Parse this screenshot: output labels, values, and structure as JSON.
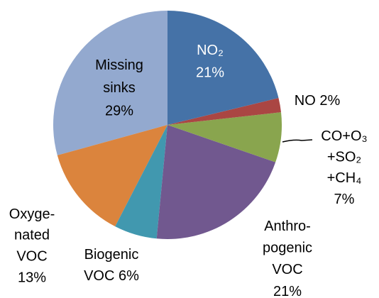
{
  "chart_data": {
    "type": "pie",
    "categories": [
      [
        "NO₂"
      ],
      [
        "NO"
      ],
      [
        "CO+O₃",
        "+SO₂",
        "+CH₄"
      ],
      [
        "Anthro-",
        "pogenic",
        "VOC"
      ],
      [
        "Biogenic",
        "VOC"
      ],
      [
        "Oxyge-",
        "nated",
        "VOC"
      ],
      [
        "Missing",
        "sinks"
      ]
    ],
    "values": [
      21,
      2,
      7,
      21,
      6,
      13,
      29
    ],
    "value_labels": [
      "21%",
      "2%",
      "7%",
      "21%",
      "6%",
      "13%",
      "29%"
    ],
    "colors": [
      "#4572a7",
      "#aa4643",
      "#89a54e",
      "#71588f",
      "#4198af",
      "#db843d",
      "#93a9cf"
    ]
  }
}
